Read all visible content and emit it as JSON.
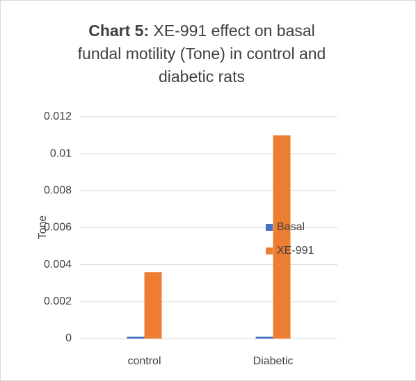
{
  "chart_data": {
    "type": "bar",
    "title_lead": "Chart 5:",
    "title": "XE-991 effect on basal fundal motility (Tone) in control and diabetic rats",
    "ylabel": "Tone",
    "categories": [
      "control",
      "Diabetic"
    ],
    "series": [
      {
        "name": "Basal",
        "color": "#4472c4",
        "values": [
          0.0001,
          0.0001
        ]
      },
      {
        "name": "XE-991",
        "color": "#ed7d31",
        "values": [
          0.0036,
          0.011
        ]
      }
    ],
    "ylim": [
      0,
      0.012
    ],
    "yticks": [
      0,
      0.002,
      0.004,
      0.006,
      0.008,
      0.01,
      0.012
    ],
    "grid": true,
    "legend": "right"
  }
}
